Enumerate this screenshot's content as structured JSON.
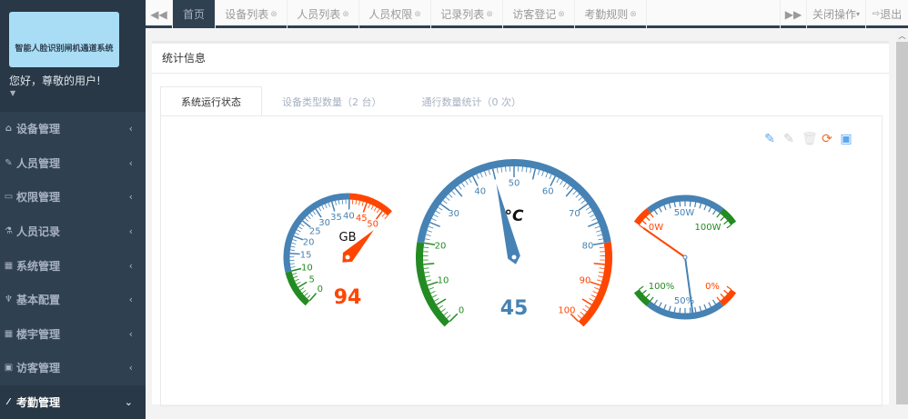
{
  "sidebar": {
    "logo_text": "智能人脸识别闸机通道系统",
    "greeting": "您好，尊敬的用户!",
    "items": [
      {
        "label": "设备管理",
        "icon": "home-icon"
      },
      {
        "label": "人员管理",
        "icon": "edit-icon"
      },
      {
        "label": "权限管理",
        "icon": "desktop-icon"
      },
      {
        "label": "人员记录",
        "icon": "flask-icon"
      },
      {
        "label": "系统管理",
        "icon": "table-icon"
      },
      {
        "label": "基本配置",
        "icon": "cutlery-icon"
      },
      {
        "label": "楼宇管理",
        "icon": "table-icon"
      },
      {
        "label": "访客管理",
        "icon": "picture-icon"
      },
      {
        "label": "考勤管理",
        "icon": "magic-icon"
      }
    ]
  },
  "topbar": {
    "tabs": [
      {
        "label": "首页",
        "active": true
      },
      {
        "label": "设备列表"
      },
      {
        "label": "人员列表"
      },
      {
        "label": "人员权限"
      },
      {
        "label": "记录列表"
      },
      {
        "label": "访客登记"
      },
      {
        "label": "考勤规则"
      }
    ],
    "close_ops": "关闭操作",
    "logout": "退出"
  },
  "panel": {
    "title": "统计信息",
    "tabs": [
      {
        "label": "系统运行状态"
      },
      {
        "label": "设备类型数量（2 台）"
      },
      {
        "label": "通行数量统计（0 次）"
      }
    ]
  },
  "toolbar_icons": [
    "pencil-add-icon",
    "pencil-remove-icon",
    "trash-icon",
    "refresh-icon",
    "save-icon"
  ],
  "colors": {
    "green": "#228b22",
    "blue": "#4682b4",
    "red": "#ff4500"
  },
  "gauges": {
    "disk": {
      "unit": "GB",
      "value_label": "94",
      "range": [
        0,
        52
      ],
      "ticks": [
        0,
        5,
        10,
        15,
        20,
        25,
        30,
        35,
        40,
        45,
        50
      ],
      "bands": [
        [
          0,
          10,
          "green"
        ],
        [
          10,
          40,
          "blue"
        ],
        [
          40,
          52,
          "red"
        ]
      ],
      "needle": 52
    },
    "temp": {
      "unit": "°C",
      "value_label": "45",
      "range": [
        0,
        100
      ],
      "ticks": [
        0,
        10,
        20,
        30,
        40,
        50,
        60,
        70,
        80,
        90,
        100
      ],
      "bands": [
        [
          0,
          20,
          "green"
        ],
        [
          20,
          80,
          "blue"
        ],
        [
          80,
          100,
          "red"
        ]
      ],
      "needle": 45
    },
    "power": {
      "top_labels": [
        "0W",
        "50W",
        "100W"
      ],
      "bottom_labels": [
        "100%",
        "50%",
        "0%"
      ],
      "power_value": 0,
      "percent_value": 57
    }
  }
}
